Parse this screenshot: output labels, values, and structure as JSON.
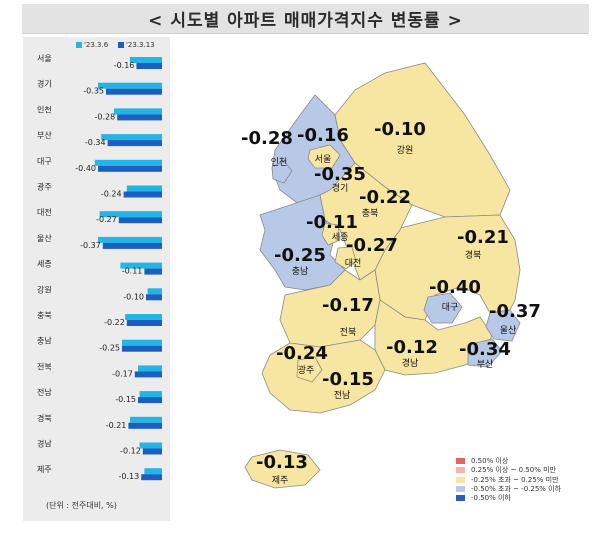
{
  "title": "< 시도별 아파트 매매가격지수 변동률 >",
  "legend_top": [
    {
      "label": "'23.3.6",
      "color": "#22b5e6"
    },
    {
      "label": "'23.3.13",
      "color": "#1b5fc0"
    }
  ],
  "unit_label": "(단위 : 전주대비, %)",
  "chart_data": {
    "type": "bar",
    "orientation": "horizontal",
    "categories": [
      "서울",
      "경기",
      "인천",
      "부산",
      "대구",
      "광주",
      "대전",
      "울산",
      "세종",
      "강원",
      "충북",
      "충남",
      "전북",
      "전남",
      "경북",
      "경남",
      "제주"
    ],
    "series": [
      {
        "name": "'23.3.6",
        "values": [
          -0.2,
          -0.4,
          -0.3,
          -0.38,
          -0.42,
          -0.22,
          -0.39,
          -0.4,
          -0.26,
          -0.09,
          -0.23,
          -0.25,
          -0.15,
          -0.14,
          -0.2,
          -0.14,
          -0.11
        ]
      },
      {
        "name": "'23.3.13",
        "values": [
          -0.16,
          -0.35,
          -0.28,
          -0.34,
          -0.4,
          -0.24,
          -0.27,
          -0.37,
          -0.11,
          -0.1,
          -0.22,
          -0.25,
          -0.17,
          -0.15,
          -0.21,
          -0.12,
          -0.13
        ]
      }
    ],
    "value_labels": [
      "-0.16",
      "-0.35",
      "-0.28",
      "-0.34",
      "-0.40",
      "-0.24",
      "-0.27",
      "-0.37",
      "-0.11",
      "-0.10",
      "-0.22",
      "-0.25",
      "-0.17",
      "-0.15",
      "-0.21",
      "-0.12",
      "-0.13"
    ]
  },
  "map": {
    "regions": [
      {
        "name": "강원",
        "value": "-0.10",
        "cls": "mid"
      },
      {
        "name": "경기",
        "value": "-0.35",
        "cls": "low"
      },
      {
        "name": "서울",
        "value": "-0.16",
        "cls": "mid"
      },
      {
        "name": "인천",
        "value": "-0.28",
        "cls": "low"
      },
      {
        "name": "충북",
        "value": "-0.22",
        "cls": "mid"
      },
      {
        "name": "세종",
        "value": "-0.11",
        "cls": "mid"
      },
      {
        "name": "대전",
        "value": "-0.27",
        "cls": "low"
      },
      {
        "name": "충남",
        "value": "-0.25",
        "cls": "mid"
      },
      {
        "name": "경북",
        "value": "-0.21",
        "cls": "mid"
      },
      {
        "name": "대구",
        "value": "-0.40",
        "cls": "low"
      },
      {
        "name": "울산",
        "value": "-0.37",
        "cls": "low"
      },
      {
        "name": "전북",
        "value": "-0.17",
        "cls": "mid"
      },
      {
        "name": "경남",
        "value": "-0.12",
        "cls": "mid"
      },
      {
        "name": "부산",
        "value": "-0.34",
        "cls": "low"
      },
      {
        "name": "광주",
        "value": "-0.24",
        "cls": "mid"
      },
      {
        "name": "전남",
        "value": "-0.15",
        "cls": "mid"
      },
      {
        "name": "제주",
        "value": "-0.13",
        "cls": "mid"
      }
    ],
    "legend": [
      {
        "label": "0.50% 이상",
        "color": "#e8625c"
      },
      {
        "label": "0.25% 이상 ~ 0.50% 미만",
        "color": "#f5b3ad"
      },
      {
        "label": "-0.25% 초과 ~ 0.25% 미만",
        "color": "#f7e6a1"
      },
      {
        "label": "-0.50% 초과 ~ -0.25% 이하",
        "color": "#b8c9e8"
      },
      {
        "label": "-0.50% 이하",
        "color": "#2f5bbd"
      }
    ],
    "colors": {
      "mid": "#f7e6a1",
      "low": "#b8c9e8",
      "border": "#7a7a7a"
    }
  }
}
